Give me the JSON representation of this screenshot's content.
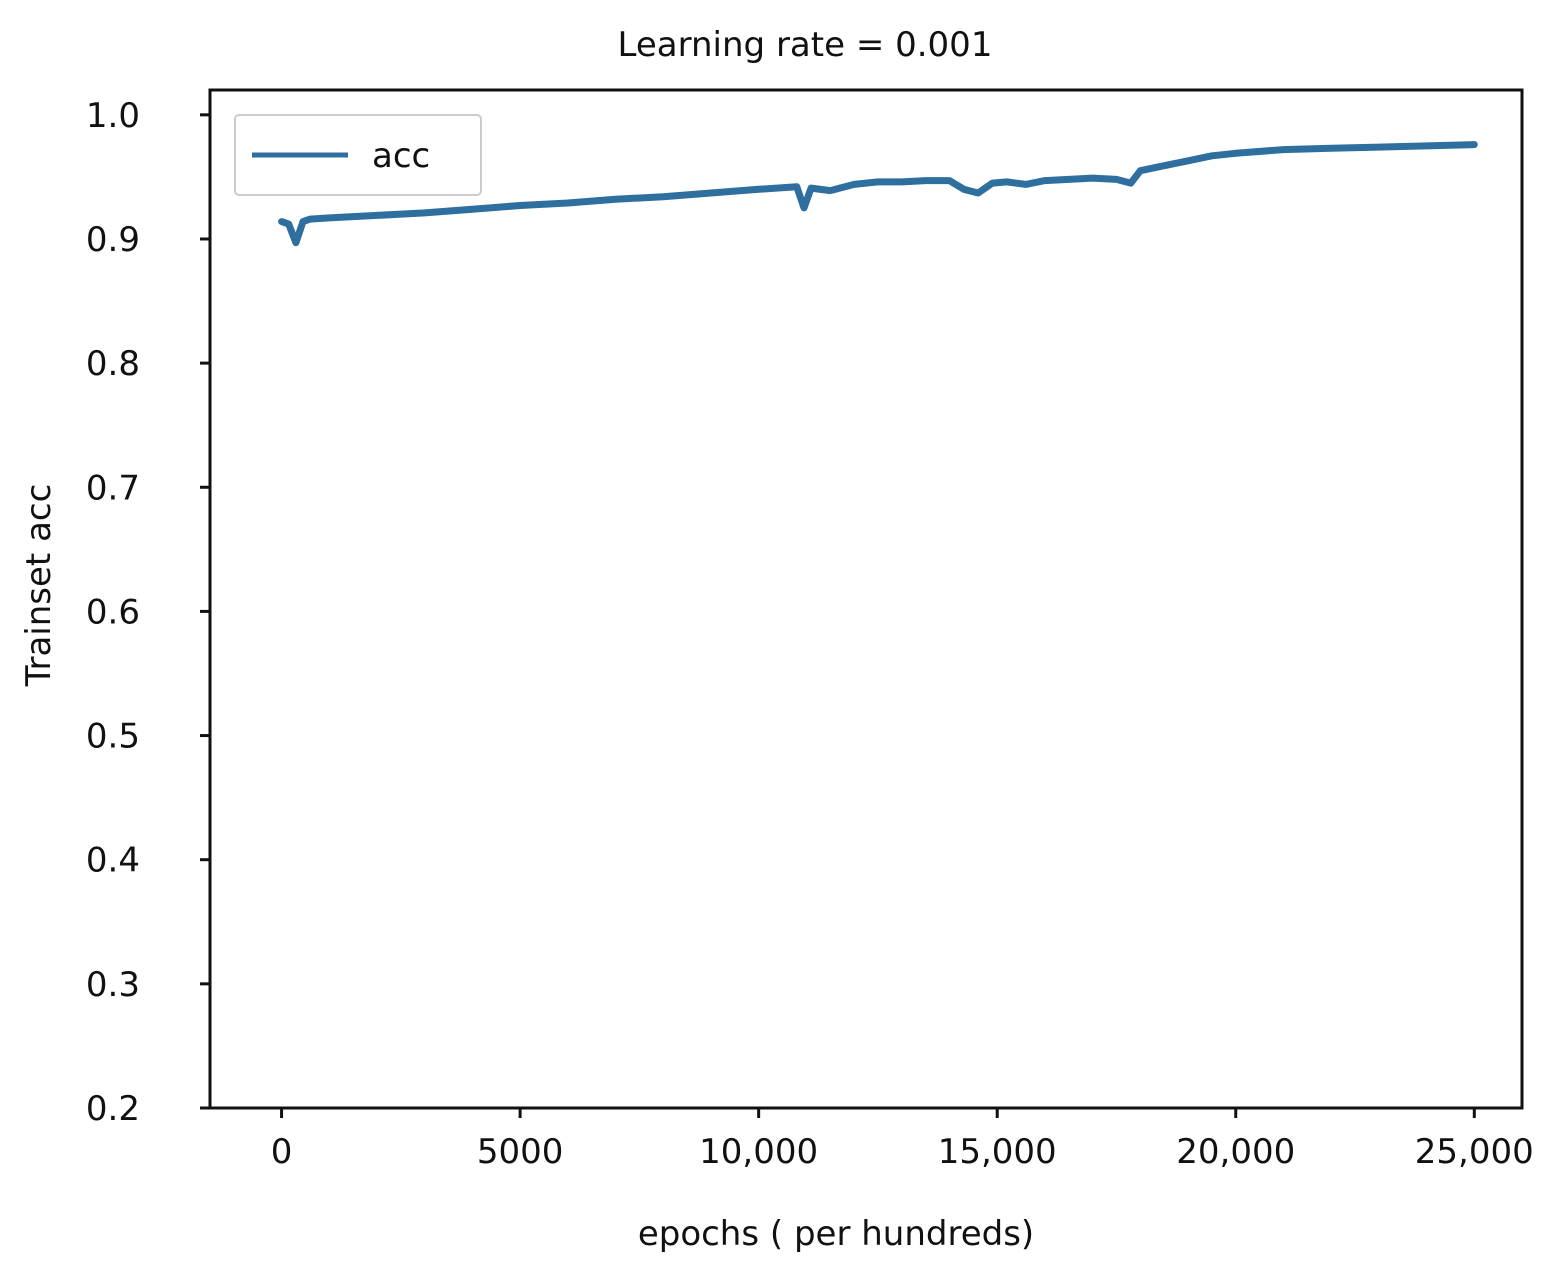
{
  "chart_data": {
    "type": "line",
    "title": "Learning rate = 0.001",
    "xlabel": "epochs ( per hundreds)",
    "ylabel": "Trainset acc",
    "xlim": [
      -1500,
      26000
    ],
    "ylim": [
      0.2,
      1.02
    ],
    "xticks": [
      0,
      5000,
      10000,
      15000,
      20000,
      25000
    ],
    "xtick_labels": [
      "0",
      "5000",
      "10,000",
      "15,000",
      "20,000",
      "25,000"
    ],
    "yticks": [
      0.2,
      0.3,
      0.4,
      0.5,
      0.6,
      0.7,
      0.8,
      0.9,
      1.0
    ],
    "ytick_labels": [
      "0.2",
      "0.3",
      "0.4",
      "0.5",
      "0.6",
      "0.7",
      "0.8",
      "0.9",
      "1.0"
    ],
    "grid": false,
    "legend": {
      "position": "top-left",
      "entries": [
        "acc"
      ]
    },
    "color": "#2e6fa0",
    "series": [
      {
        "name": "acc",
        "x": [
          0,
          150,
          300,
          450,
          600,
          1000,
          2000,
          3000,
          4000,
          5000,
          6000,
          7000,
          8000,
          9000,
          10000,
          10800,
          10950,
          11100,
          11500,
          12000,
          12500,
          13000,
          13500,
          14000,
          14300,
          14600,
          14900,
          15200,
          15600,
          16000,
          16500,
          17000,
          17500,
          17800,
          18000,
          18500,
          19000,
          19500,
          20000,
          21000,
          22000,
          23000,
          24000,
          25000
        ],
        "y": [
          0.914,
          0.912,
          0.897,
          0.914,
          0.916,
          0.917,
          0.919,
          0.921,
          0.924,
          0.927,
          0.929,
          0.932,
          0.934,
          0.937,
          0.94,
          0.942,
          0.925,
          0.941,
          0.939,
          0.944,
          0.946,
          0.946,
          0.947,
          0.947,
          0.94,
          0.937,
          0.945,
          0.946,
          0.944,
          0.947,
          0.948,
          0.949,
          0.948,
          0.945,
          0.955,
          0.959,
          0.963,
          0.967,
          0.969,
          0.972,
          0.973,
          0.974,
          0.975,
          0.976
        ]
      }
    ]
  }
}
